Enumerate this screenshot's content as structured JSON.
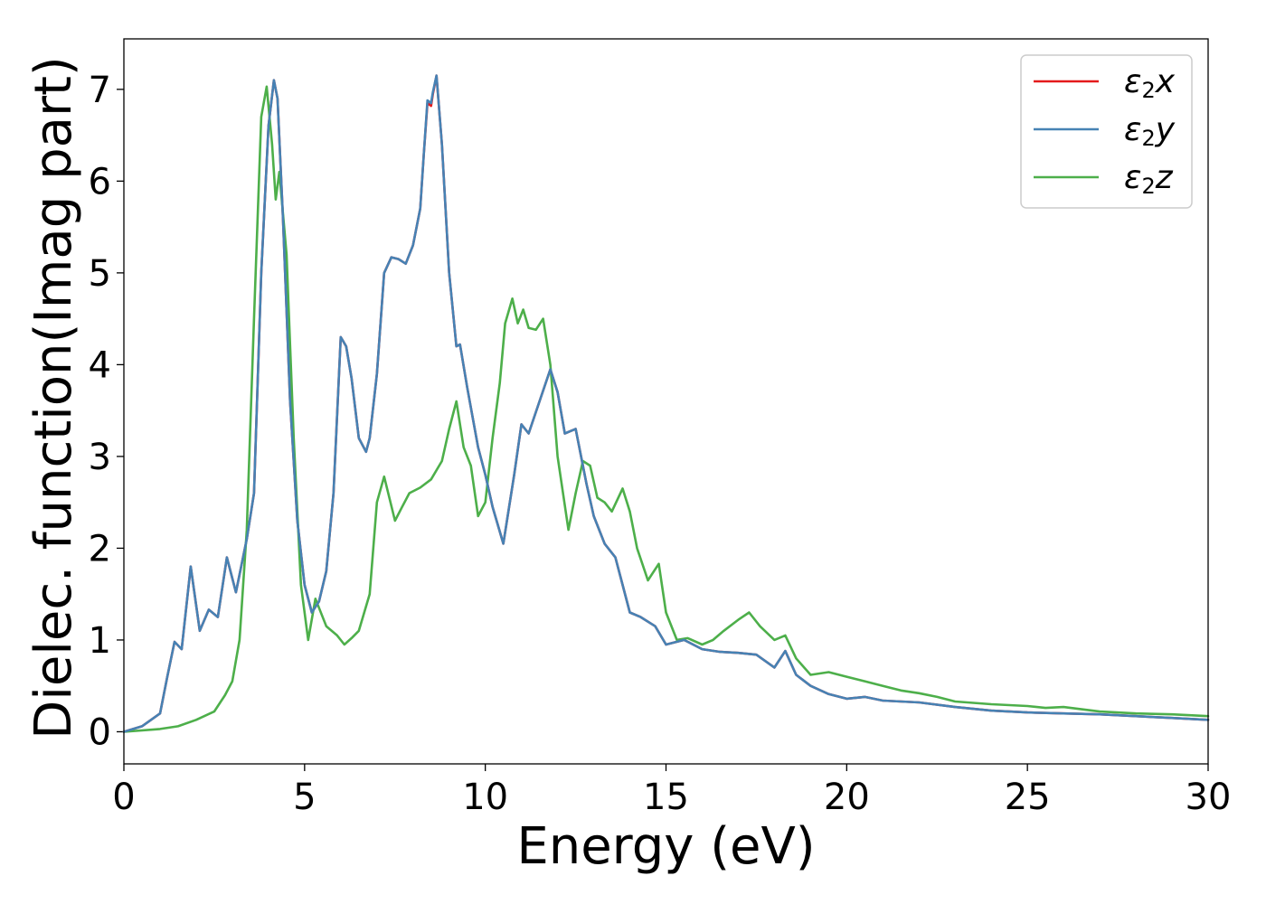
{
  "chart_data": {
    "type": "line",
    "title": "",
    "xlabel": "Energy (eV)",
    "ylabel": "Dielec. function(Imag part)",
    "xlim": [
      0,
      30
    ],
    "ylim": [
      -0.35,
      7.55
    ],
    "xticks": [
      0,
      5,
      10,
      15,
      20,
      25,
      30
    ],
    "yticks": [
      0,
      1,
      2,
      3,
      4,
      5,
      6,
      7
    ],
    "grid": false,
    "legend_position": "top-right",
    "series": [
      {
        "name": "ε2x",
        "legend_base": "ε",
        "legend_sub": "2",
        "legend_var": "x",
        "color": "#e41a1c",
        "x": [
          0,
          0.5,
          1,
          1.2,
          1.4,
          1.6,
          1.85,
          2.1,
          2.35,
          2.6,
          2.85,
          3.1,
          3.4,
          3.6,
          3.8,
          4.0,
          4.15,
          4.25,
          4.4,
          4.6,
          4.8,
          5.0,
          5.2,
          5.4,
          5.6,
          5.8,
          6.0,
          6.15,
          6.3,
          6.5,
          6.7,
          6.8,
          7.0,
          7.2,
          7.4,
          7.6,
          7.8,
          8.0,
          8.2,
          8.3,
          8.4,
          8.5,
          8.55,
          8.65,
          8.8,
          9.0,
          9.2,
          9.3,
          9.5,
          9.8,
          10.0,
          10.2,
          10.5,
          10.8,
          11.0,
          11.2,
          11.5,
          11.8,
          12.0,
          12.2,
          12.5,
          12.8,
          13.0,
          13.3,
          13.6,
          13.8,
          14.0,
          14.3,
          14.7,
          15.0,
          15.5,
          16.0,
          16.5,
          17.0,
          17.5,
          18.0,
          18.3,
          18.6,
          19.0,
          19.5,
          20.0,
          20.5,
          21.0,
          22.0,
          23.0,
          24.0,
          25.0,
          26.0,
          27.0,
          28.0,
          29.0,
          30.0
        ],
        "y": [
          0,
          0.06,
          0.2,
          0.6,
          0.98,
          0.9,
          1.8,
          1.1,
          1.33,
          1.25,
          1.9,
          1.52,
          2.1,
          2.6,
          5.0,
          6.6,
          7.1,
          6.9,
          5.6,
          3.6,
          2.3,
          1.6,
          1.3,
          1.42,
          1.75,
          2.6,
          4.3,
          4.2,
          3.85,
          3.2,
          3.05,
          3.2,
          3.9,
          5.0,
          5.17,
          5.15,
          5.1,
          5.3,
          5.7,
          6.3,
          6.85,
          6.82,
          6.95,
          7.15,
          6.4,
          5.0,
          4.2,
          4.22,
          3.75,
          3.1,
          2.8,
          2.45,
          2.05,
          2.8,
          3.35,
          3.25,
          3.6,
          3.95,
          3.7,
          3.25,
          3.3,
          2.7,
          2.35,
          2.05,
          1.9,
          1.6,
          1.3,
          1.25,
          1.15,
          0.95,
          1.0,
          0.9,
          0.87,
          0.86,
          0.84,
          0.7,
          0.88,
          0.62,
          0.5,
          0.41,
          0.36,
          0.38,
          0.34,
          0.32,
          0.27,
          0.23,
          0.21,
          0.2,
          0.19,
          0.17,
          0.15,
          0.13
        ]
      },
      {
        "name": "ε2y",
        "legend_base": "ε",
        "legend_sub": "2",
        "legend_var": "y",
        "color": "#4682b4",
        "x": [
          0,
          0.5,
          1,
          1.2,
          1.4,
          1.6,
          1.85,
          2.1,
          2.35,
          2.6,
          2.85,
          3.1,
          3.4,
          3.6,
          3.8,
          4.0,
          4.15,
          4.25,
          4.4,
          4.6,
          4.8,
          5.0,
          5.2,
          5.4,
          5.6,
          5.8,
          6.0,
          6.15,
          6.3,
          6.5,
          6.7,
          6.8,
          7.0,
          7.2,
          7.4,
          7.6,
          7.8,
          8.0,
          8.2,
          8.3,
          8.4,
          8.5,
          8.55,
          8.65,
          8.8,
          9.0,
          9.2,
          9.3,
          9.5,
          9.8,
          10.0,
          10.2,
          10.5,
          10.8,
          11.0,
          11.2,
          11.5,
          11.8,
          12.0,
          12.2,
          12.5,
          12.8,
          13.0,
          13.3,
          13.6,
          13.8,
          14.0,
          14.3,
          14.7,
          15.0,
          15.5,
          16.0,
          16.5,
          17.0,
          17.5,
          18.0,
          18.3,
          18.6,
          19.0,
          19.5,
          20.0,
          20.5,
          21.0,
          22.0,
          23.0,
          24.0,
          25.0,
          26.0,
          27.0,
          28.0,
          29.0,
          30.0
        ],
        "y": [
          0,
          0.06,
          0.2,
          0.6,
          0.98,
          0.9,
          1.8,
          1.1,
          1.33,
          1.25,
          1.9,
          1.52,
          2.1,
          2.6,
          5.0,
          6.6,
          7.1,
          6.9,
          5.6,
          3.6,
          2.3,
          1.6,
          1.3,
          1.42,
          1.75,
          2.6,
          4.3,
          4.2,
          3.85,
          3.2,
          3.05,
          3.2,
          3.9,
          5.0,
          5.17,
          5.15,
          5.1,
          5.3,
          5.7,
          6.3,
          6.88,
          6.85,
          6.97,
          7.15,
          6.4,
          5.0,
          4.2,
          4.22,
          3.75,
          3.1,
          2.8,
          2.45,
          2.05,
          2.8,
          3.35,
          3.25,
          3.6,
          3.95,
          3.7,
          3.25,
          3.3,
          2.7,
          2.35,
          2.05,
          1.9,
          1.6,
          1.3,
          1.25,
          1.15,
          0.95,
          1.0,
          0.9,
          0.87,
          0.86,
          0.84,
          0.7,
          0.88,
          0.62,
          0.5,
          0.41,
          0.36,
          0.38,
          0.34,
          0.32,
          0.27,
          0.23,
          0.21,
          0.2,
          0.19,
          0.17,
          0.15,
          0.13
        ]
      },
      {
        "name": "ε2z",
        "legend_base": "ε",
        "legend_sub": "2",
        "legend_var": "z",
        "color": "#4daf4a",
        "x": [
          0,
          1,
          1.5,
          2,
          2.5,
          2.8,
          3.0,
          3.2,
          3.4,
          3.6,
          3.8,
          3.95,
          4.1,
          4.2,
          4.3,
          4.5,
          4.7,
          4.9,
          5.1,
          5.3,
          5.6,
          5.9,
          6.1,
          6.3,
          6.5,
          6.8,
          7.0,
          7.2,
          7.5,
          7.7,
          7.9,
          8.2,
          8.5,
          8.8,
          9.0,
          9.2,
          9.4,
          9.6,
          9.8,
          10.0,
          10.2,
          10.4,
          10.55,
          10.75,
          10.9,
          11.05,
          11.2,
          11.4,
          11.6,
          11.8,
          12.0,
          12.3,
          12.5,
          12.7,
          12.9,
          13.1,
          13.3,
          13.5,
          13.8,
          14.0,
          14.2,
          14.5,
          14.8,
          15.0,
          15.3,
          15.6,
          16.0,
          16.3,
          16.6,
          17.0,
          17.3,
          17.6,
          18.0,
          18.3,
          18.6,
          19.0,
          19.5,
          20.0,
          20.5,
          21.0,
          21.5,
          22.0,
          22.5,
          23.0,
          24.0,
          25.0,
          25.5,
          26.0,
          27.0,
          28.0,
          29.0,
          30.0
        ],
        "y": [
          0,
          0.03,
          0.06,
          0.13,
          0.22,
          0.4,
          0.55,
          1.0,
          2.2,
          4.5,
          6.7,
          7.03,
          6.4,
          5.8,
          6.1,
          5.2,
          3.2,
          1.6,
          1.0,
          1.45,
          1.15,
          1.05,
          0.95,
          1.02,
          1.1,
          1.5,
          2.5,
          2.78,
          2.3,
          2.45,
          2.6,
          2.66,
          2.75,
          2.95,
          3.3,
          3.6,
          3.1,
          2.9,
          2.35,
          2.5,
          3.2,
          3.8,
          4.45,
          4.72,
          4.45,
          4.6,
          4.4,
          4.38,
          4.5,
          4.0,
          3.0,
          2.2,
          2.6,
          2.95,
          2.9,
          2.55,
          2.5,
          2.4,
          2.65,
          2.4,
          2.0,
          1.65,
          1.83,
          1.3,
          1.0,
          1.02,
          0.95,
          1.0,
          1.1,
          1.22,
          1.3,
          1.15,
          1.0,
          1.05,
          0.8,
          0.62,
          0.65,
          0.6,
          0.55,
          0.5,
          0.45,
          0.42,
          0.38,
          0.33,
          0.3,
          0.28,
          0.26,
          0.27,
          0.22,
          0.2,
          0.19,
          0.17
        ]
      }
    ]
  }
}
